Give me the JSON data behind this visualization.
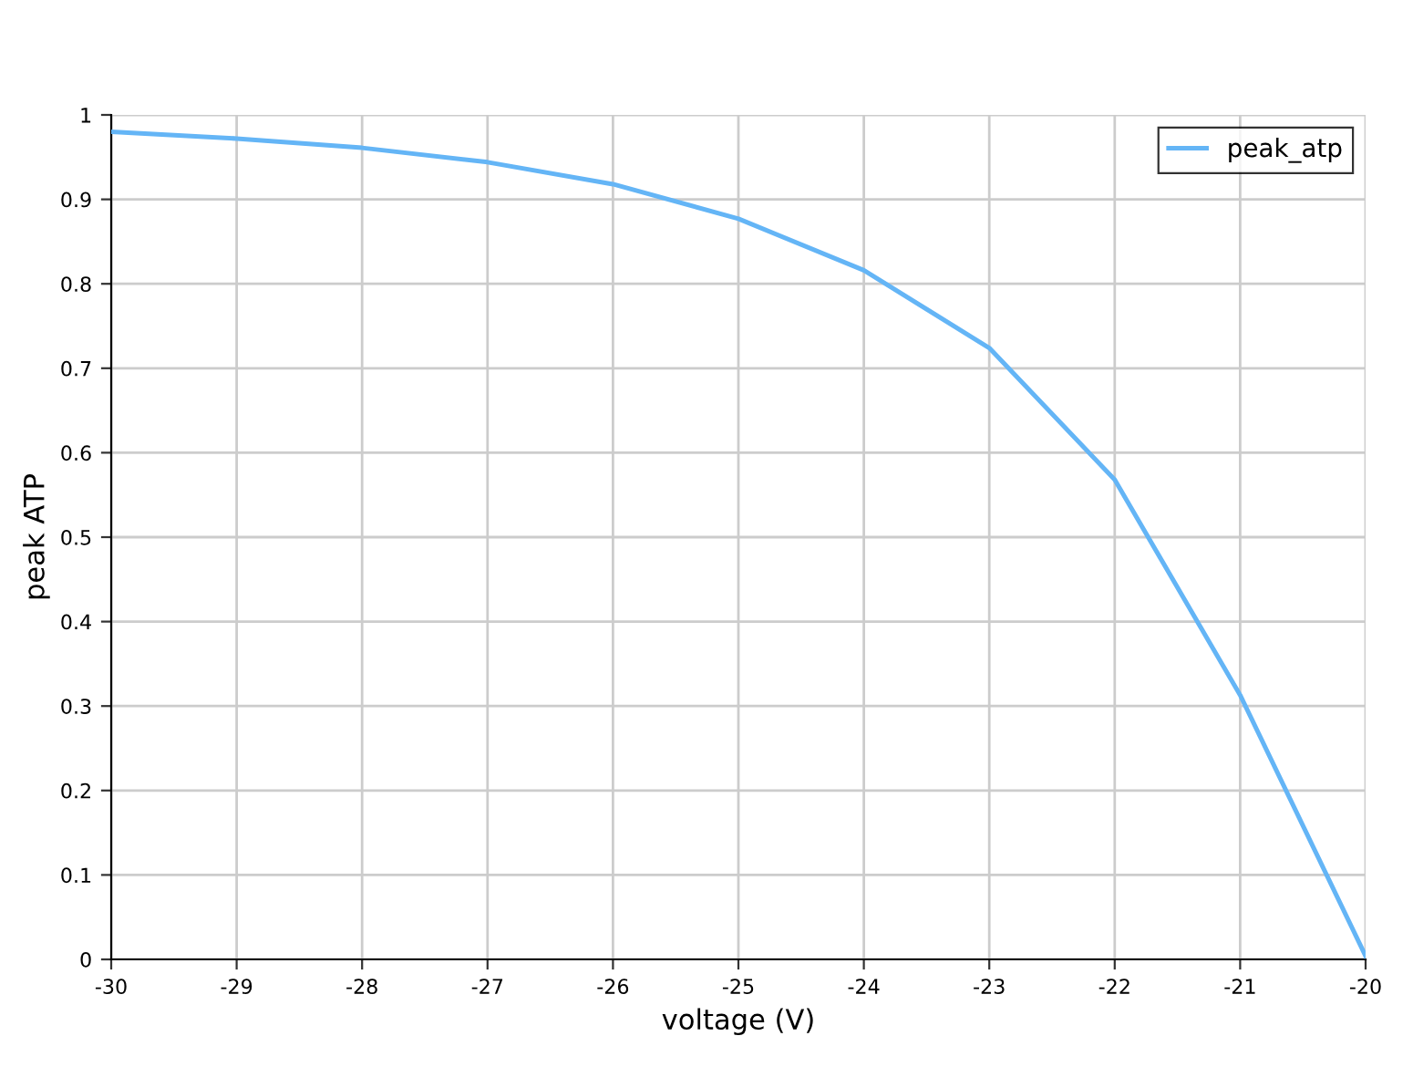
{
  "chart_data": {
    "type": "line",
    "xlabel": "voltage (V)",
    "ylabel": "peak ATP",
    "x": [
      -30,
      -29,
      -28,
      -27,
      -26,
      -25,
      -24,
      -23,
      -22,
      -21,
      -20
    ],
    "series": [
      {
        "name": "peak_atp",
        "color": "#64b5f6",
        "values": [
          0.98,
          0.972,
          0.961,
          0.944,
          0.918,
          0.877,
          0.816,
          0.724,
          0.568,
          0.313,
          0.004
        ]
      }
    ],
    "xlim": [
      -30,
      -20
    ],
    "ylim": [
      0,
      1
    ],
    "xticks": [
      {
        "value": -30,
        "label": "-30"
      },
      {
        "value": -29,
        "label": "-29"
      },
      {
        "value": -28,
        "label": "-28"
      },
      {
        "value": -27,
        "label": "-27"
      },
      {
        "value": -26,
        "label": "-26"
      },
      {
        "value": -25,
        "label": "-25"
      },
      {
        "value": -24,
        "label": "-24"
      },
      {
        "value": -23,
        "label": "-23"
      },
      {
        "value": -22,
        "label": "-22"
      },
      {
        "value": -21,
        "label": "-21"
      },
      {
        "value": -20,
        "label": "-20"
      }
    ],
    "yticks": [
      0,
      0.1,
      0.2,
      0.3,
      0.4,
      0.5,
      0.6,
      0.7,
      0.8,
      0.9,
      1
    ],
    "grid": true,
    "legend": "top right",
    "marker": "none",
    "line_style": "solid"
  }
}
